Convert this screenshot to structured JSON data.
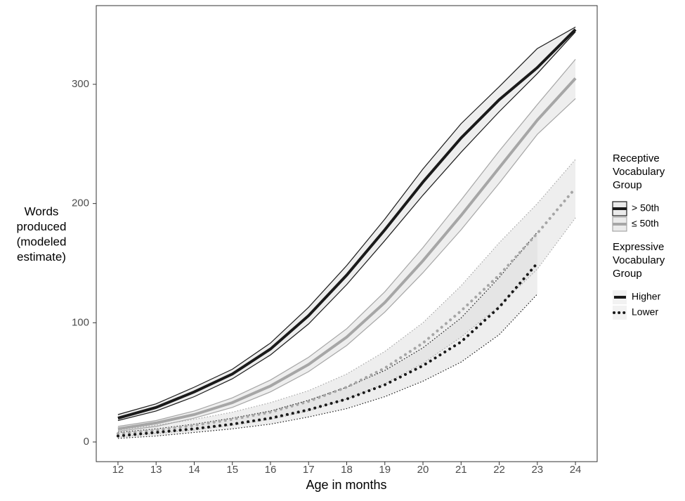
{
  "chart_data": {
    "type": "line",
    "xlabel": "Age in months",
    "ylabel": [
      "Words",
      "produced",
      "(modeled",
      "estimate)"
    ],
    "xlim": [
      11.43,
      24.57
    ],
    "ylim": [
      -16.5,
      366
    ],
    "xticks": [
      12,
      13,
      14,
      15,
      16,
      17,
      18,
      19,
      20,
      21,
      22,
      23,
      24
    ],
    "yticks": [
      0,
      100,
      200,
      300
    ],
    "grid": false,
    "x": [
      12,
      13,
      14,
      15,
      16,
      17,
      18,
      19,
      20,
      21,
      22,
      23,
      24
    ],
    "series": [
      {
        "color": "#a6a6a6",
        "dash": "solid",
        "values": [
          11,
          16,
          23,
          33,
          47,
          65,
          88,
          117,
          152,
          190,
          230,
          270,
          305
        ],
        "lower": [
          9,
          13,
          20,
          29,
          42,
          59,
          81,
          109,
          142,
          178,
          217,
          258,
          288
        ],
        "upper": [
          13,
          18,
          26,
          37,
          52,
          71,
          95,
          126,
          163,
          203,
          244,
          283,
          321
        ]
      },
      {
        "color": "#a6a6a6",
        "dash": "dotted",
        "values": [
          7,
          10,
          14,
          19,
          25,
          34,
          46,
          62,
          83,
          110,
          140,
          175,
          213
        ],
        "lower": [
          4,
          7,
          10,
          14,
          19,
          26,
          36,
          49,
          66,
          88,
          114,
          145,
          188
        ],
        "upper": [
          10,
          14,
          19,
          25,
          33,
          43,
          57,
          76,
          100,
          131,
          167,
          200,
          237
        ]
      },
      {
        "color": "#1a1a1a",
        "dash": "dotted",
        "values": [
          5,
          8,
          11,
          15,
          20,
          27,
          36,
          48,
          64,
          84,
          113,
          150,
          null
        ],
        "lower": [
          3,
          5,
          8,
          11,
          15,
          21,
          28,
          38,
          51,
          67,
          90,
          124,
          null
        ],
        "upper": [
          8,
          11,
          15,
          20,
          26,
          35,
          46,
          60,
          79,
          104,
          138,
          176,
          null
        ]
      },
      {
        "color": "#1a1a1a",
        "dash": "solid",
        "values": [
          20,
          29,
          42,
          57,
          78,
          106,
          140,
          178,
          218,
          255,
          287,
          314,
          346
        ],
        "lower": [
          18,
          26,
          38,
          53,
          73,
          99,
          132,
          169,
          207,
          243,
          277,
          309,
          344
        ],
        "upper": [
          23,
          32,
          46,
          61,
          83,
          113,
          148,
          187,
          229,
          267,
          298,
          330,
          348
        ]
      }
    ],
    "legends": [
      {
        "title": [
          "Receptive",
          "Vocabulary",
          "Group"
        ],
        "entries": [
          {
            "label": "> 50th",
            "color": "#1a1a1a"
          },
          {
            "label": "≤ 50th",
            "color": "#a6a6a6"
          }
        ]
      },
      {
        "title": [
          "Expressive",
          "Vocabulary",
          "Group"
        ],
        "entries": [
          {
            "label": "Higher",
            "dash": "solid"
          },
          {
            "label": "Lower",
            "dash": "dotted"
          }
        ]
      }
    ]
  }
}
